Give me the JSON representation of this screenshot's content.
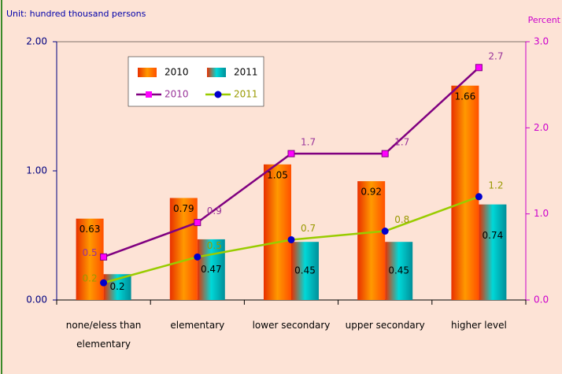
{
  "chart_data": {
    "type": "bar",
    "y_label": "Unit: hundred thousand persons",
    "y2_label": "Percent",
    "categories": [
      "none/eless than elementary",
      "elementary",
      "lower secondary",
      "upper secondary",
      "higher level"
    ],
    "series": [
      {
        "name": "2010",
        "type": "bar",
        "color": "#ff9900",
        "values": [
          0.63,
          0.79,
          1.05,
          0.92,
          1.66
        ]
      },
      {
        "name": "2011",
        "type": "bar",
        "color": "#00d8d8",
        "values": [
          0.2,
          0.47,
          0.45,
          0.45,
          0.74
        ]
      },
      {
        "name": "2010",
        "type": "line",
        "axis": "y2",
        "color": "#800080",
        "marker_color": "#ff00ff",
        "label_color": "#993399",
        "values": [
          0.5,
          0.9,
          1.7,
          1.7,
          2.7
        ]
      },
      {
        "name": "2011",
        "type": "line",
        "axis": "y2",
        "color": "#99cc00",
        "marker_color": "#0000cc",
        "label_color": "#999900",
        "values": [
          0.2,
          0.5,
          0.7,
          0.8,
          1.2
        ]
      }
    ],
    "ylim": [
      0,
      2
    ],
    "yticks": [
      {
        "value": 0,
        "label": "0.00"
      },
      {
        "value": 1,
        "label": "1.00"
      },
      {
        "value": 2,
        "label": "2.00"
      }
    ],
    "y2lim": [
      0,
      3
    ],
    "y2ticks": [
      {
        "value": 0,
        "label": "0.0"
      },
      {
        "value": 1,
        "label": "1.0"
      },
      {
        "value": 2,
        "label": "2.0"
      },
      {
        "value": 3,
        "label": "3.0"
      }
    ],
    "grid": false,
    "legend": "top-left"
  }
}
